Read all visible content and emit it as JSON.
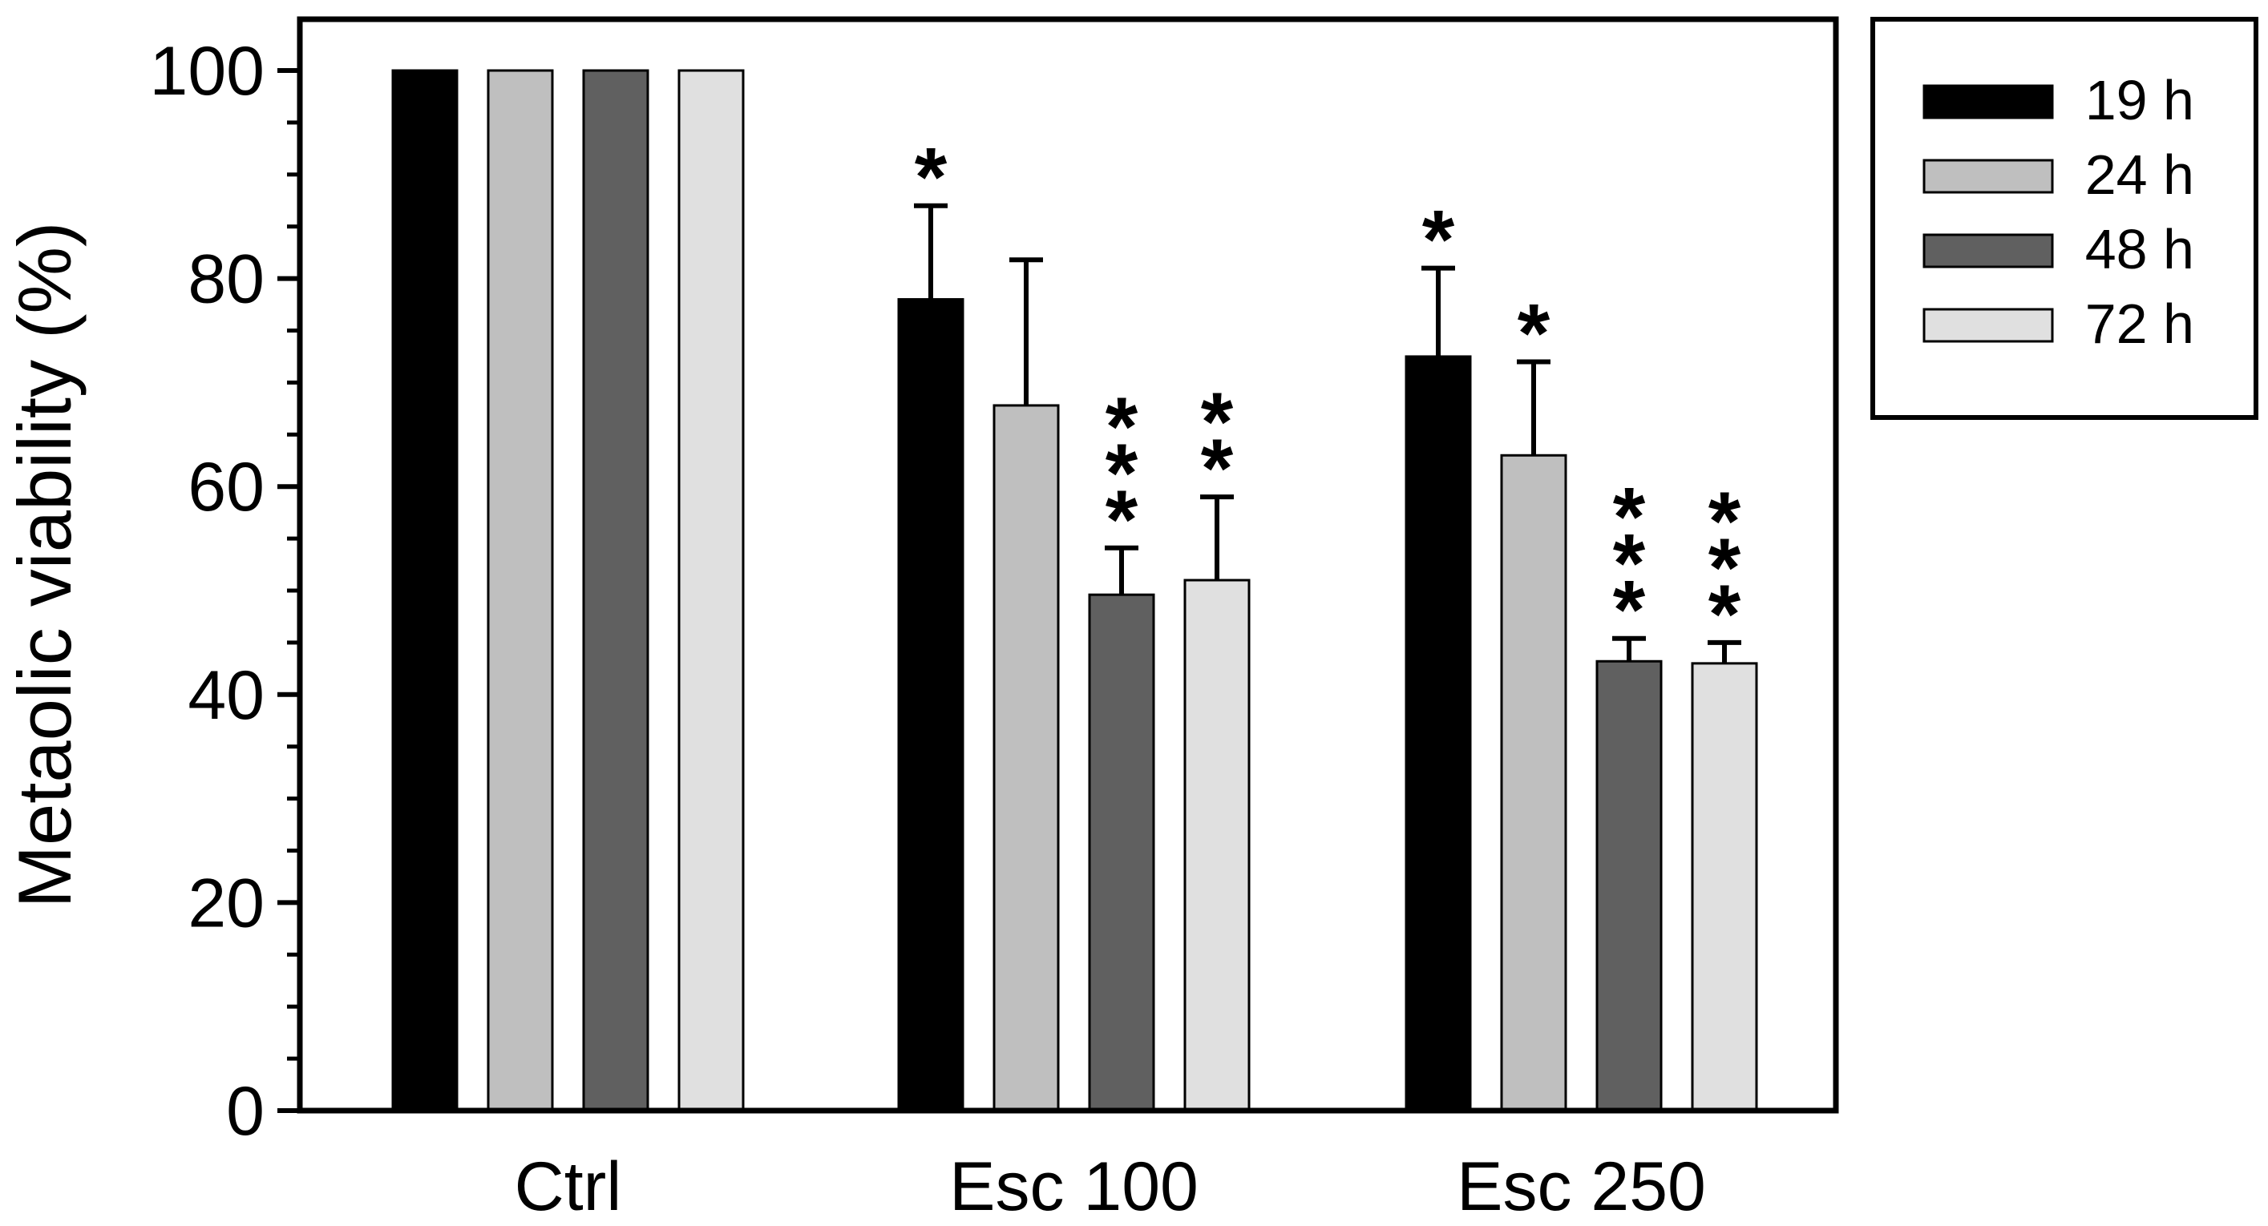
{
  "chart_data": {
    "type": "bar",
    "ylabel": "Metaolic viability  (%)",
    "xlabel": "",
    "ylim": [
      0,
      100
    ],
    "yticks": [
      "0",
      "20",
      "40",
      "60",
      "80",
      "100"
    ],
    "categories": [
      "Ctrl",
      "Esc 100",
      "Esc 250"
    ],
    "series": [
      {
        "name": "19 h",
        "values": [
          100,
          78,
          72.5
        ],
        "errors": [
          0,
          9,
          8.5
        ],
        "stars": [
          0,
          1,
          1
        ],
        "color": "#000000"
      },
      {
        "name": "24 h",
        "values": [
          100,
          67.8,
          63
        ],
        "errors": [
          0,
          14,
          9
        ],
        "stars": [
          0,
          0,
          1
        ],
        "color": "#bfbfbf"
      },
      {
        "name": "48 h",
        "values": [
          100,
          49.6,
          43.2
        ],
        "errors": [
          0,
          4.5,
          2.2
        ],
        "stars": [
          0,
          3,
          3
        ],
        "color": "#606060"
      },
      {
        "name": "72 h",
        "values": [
          100,
          51,
          43
        ],
        "errors": [
          0,
          8,
          2
        ],
        "stars": [
          0,
          2,
          3
        ],
        "color": "#e0e0e0"
      }
    ],
    "star_symbol": "*",
    "legend_position": "top-right, outside plot",
    "grid": false
  }
}
